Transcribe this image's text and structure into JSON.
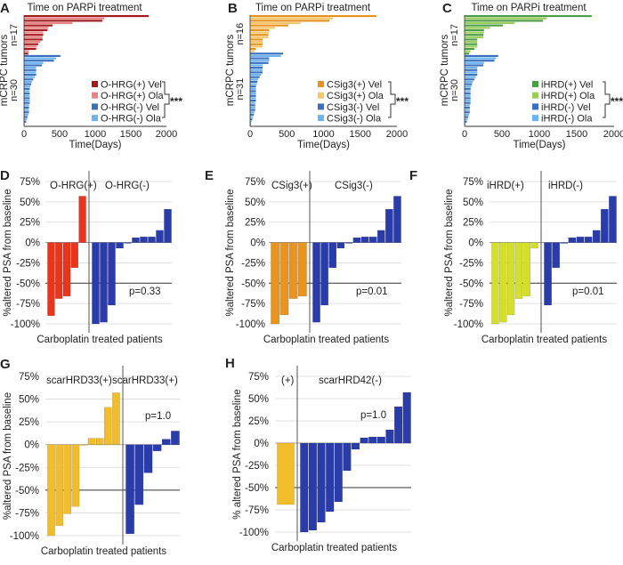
{
  "chart_data": [
    {
      "panel": "A",
      "type": "bar",
      "orientation": "horizontal",
      "title": "Time on PARPi treatment",
      "xlabel": "Time(Days)",
      "ylabel": "mCRPC tumors",
      "xlim": [
        0,
        2000
      ],
      "xticks": [
        "0",
        "500",
        "1000",
        "1500",
        "2000"
      ],
      "groups": [
        {
          "label": "n=17",
          "values": [
            1750,
            1130,
            1100,
            680,
            400,
            340,
            330,
            270,
            270,
            260,
            260,
            230,
            200,
            180,
            170,
            70,
            60
          ]
        },
        {
          "label": "n=30",
          "values": [
            510,
            450,
            420,
            270,
            250,
            170,
            170,
            170,
            170,
            150,
            130,
            110,
            100,
            90,
            80,
            80,
            80,
            80,
            80,
            80,
            80,
            70,
            70,
            70,
            70,
            60,
            50,
            40,
            30,
            10
          ]
        }
      ],
      "legend": [
        {
          "name": "O-HRG(+) Vel",
          "color": "#a3191c"
        },
        {
          "name": "O-HRG(+) Ola",
          "color": "#e98383"
        },
        {
          "name": "O-HRG(-) Vel",
          "color": "#3b6fc0"
        },
        {
          "name": "O-HRG(-) Ola",
          "color": "#6cb4ef"
        }
      ],
      "significance": "***"
    },
    {
      "panel": "B",
      "type": "bar",
      "orientation": "horizontal",
      "title": "Time on PARPi treatment",
      "xlabel": "Time(Days)",
      "ylabel": "mCRPC tumors",
      "xlim": [
        0,
        2000
      ],
      "xticks": [
        "0",
        "500",
        "1000",
        "1500",
        "2000"
      ],
      "groups": [
        {
          "label": "n=16",
          "values": [
            1720,
            1130,
            1080,
            690,
            520,
            340,
            260,
            260,
            250,
            250,
            170,
            170,
            170,
            170,
            80,
            60
          ]
        },
        {
          "label": "n=31",
          "values": [
            450,
            420,
            260,
            260,
            250,
            170,
            170,
            170,
            170,
            150,
            130,
            110,
            100,
            90,
            80,
            80,
            80,
            80,
            80,
            80,
            80,
            70,
            70,
            70,
            70,
            60,
            50,
            40,
            30,
            20,
            10
          ]
        }
      ],
      "legend": [
        {
          "name": "CSig3(+) Vel",
          "color": "#e8911e"
        },
        {
          "name": "CSig3(+) Ola",
          "color": "#f2c86c"
        },
        {
          "name": "CSig3(-) Vel",
          "color": "#3b6fc0"
        },
        {
          "name": "CSig3(-) Ola",
          "color": "#6cb4ef"
        }
      ],
      "significance": "***"
    },
    {
      "panel": "C",
      "type": "bar",
      "orientation": "horizontal",
      "title": "Time on PARPi treatment",
      "xlabel": "Time(Days)",
      "ylabel": "mCRPC tumors",
      "xlim": [
        0,
        2000
      ],
      "xticks": [
        "0",
        "500",
        "1000",
        "1500",
        "2000"
      ],
      "groups": [
        {
          "label": "n=17",
          "values": [
            1700,
            1100,
            1050,
            670,
            510,
            340,
            260,
            260,
            250,
            250,
            170,
            170,
            170,
            170,
            130,
            80,
            60
          ]
        },
        {
          "label": "n=30",
          "values": [
            450,
            420,
            400,
            260,
            250,
            170,
            170,
            170,
            170,
            150,
            130,
            110,
            100,
            90,
            80,
            80,
            80,
            80,
            80,
            80,
            80,
            70,
            70,
            70,
            70,
            60,
            50,
            40,
            30,
            10
          ]
        }
      ],
      "legend": [
        {
          "name": "iHRD(+) Vel",
          "color": "#4a9e47"
        },
        {
          "name": "iHRD(+) Ola",
          "color": "#9ccc5a"
        },
        {
          "name": "iHRD(-) Vel",
          "color": "#3b6fc0"
        },
        {
          "name": "iHRD(-) Ola",
          "color": "#6cb4ef"
        }
      ],
      "significance": "***"
    },
    {
      "panel": "D",
      "type": "bar",
      "xlabel": "Carboplatin treated patients",
      "ylabel": "%altered PSA from baseline",
      "ylim": [
        -100,
        75
      ],
      "yticks": [
        "75%",
        "50%",
        "25%",
        "0%",
        "-25%",
        "-50%",
        "-75%",
        "-100%"
      ],
      "groups": [
        {
          "label": "O-HRG(+)",
          "color": "#e8351c",
          "values": [
            -90,
            -69,
            -66,
            -31,
            57
          ]
        },
        {
          "label": "O-HRG(-)",
          "color": "#2a3caa",
          "values": [
            -100,
            -98,
            -77,
            -7,
            -1,
            6,
            7,
            7,
            15,
            41
          ]
        }
      ],
      "p_value": "p=0.33"
    },
    {
      "panel": "E",
      "type": "bar",
      "xlabel": "Carboplatin treated patients",
      "ylabel": "%altered PSA from baseline",
      "ylim": [
        -100,
        75
      ],
      "yticks": [
        "75%",
        "50%",
        "25%",
        "0%",
        "-25%",
        "-50%",
        "-75%",
        "-100%"
      ],
      "groups": [
        {
          "label": "CSig3(+)",
          "color": "#e8941f",
          "values": [
            -100,
            -89,
            -69,
            -66
          ]
        },
        {
          "label": "CSig3(-)",
          "color": "#2a3caa",
          "values": [
            -98,
            -77,
            -31,
            -7,
            -1,
            6,
            7,
            7,
            15,
            41,
            57
          ]
        }
      ],
      "p_value": "p=0.01"
    },
    {
      "panel": "F",
      "type": "bar",
      "xlabel": "Carboplatin treated patients",
      "ylabel": "%altered PSA from baseline",
      "ylim": [
        -100,
        75
      ],
      "yticks": [
        "75%",
        "50%",
        "25%",
        "0%",
        "-25%",
        "-50%",
        "-75%",
        "-100%"
      ],
      "groups": [
        {
          "label": "iHRD(+)",
          "color": "#d4df2c",
          "values": [
            -100,
            -98,
            -89,
            -69,
            -66,
            -7
          ]
        },
        {
          "label": "iHRD(-)",
          "color": "#2a3caa",
          "values": [
            -77,
            -31,
            -1,
            6,
            7,
            7,
            15,
            41,
            57
          ]
        }
      ],
      "p_value": "p=0.01"
    },
    {
      "panel": "G",
      "type": "bar",
      "xlabel": "Carboplatin treated patients",
      "ylabel": "%altered PSA from baseline",
      "ylim": [
        -100,
        75
      ],
      "yticks": [
        "75%",
        "50%",
        "25%",
        "0%",
        "-25%",
        "-50%",
        "-75%",
        "-100%"
      ],
      "groups": [
        {
          "label": "scarHRD33(+)",
          "color": "#f2bd2c",
          "values": [
            -100,
            -89,
            -76,
            -68,
            0,
            7,
            7,
            41,
            57
          ]
        },
        {
          "label": "scarHRD33(+)",
          "color": "#2a3caa",
          "values": [
            -98,
            -66,
            -31,
            -7,
            6,
            15
          ]
        }
      ],
      "p_value": "p=1.0"
    },
    {
      "panel": "H",
      "type": "bar",
      "xlabel": "Carboplatin treated patients",
      "ylabel": "% altered PSA from baseline",
      "ylim": [
        -100,
        75
      ],
      "yticks": [
        "75%",
        "50%",
        "25%",
        "0%",
        "-25%",
        "-50%",
        "-75%",
        "-100%"
      ],
      "groups": [
        {
          "label": "(+)",
          "color": "#f2bd2c",
          "values": [
            -69
          ]
        },
        {
          "label": "scarHRD42(-)",
          "color": "#2a3caa",
          "values": [
            -100,
            -98,
            -89,
            -77,
            -66,
            -31,
            -7,
            6,
            7,
            7,
            15,
            41,
            57
          ]
        }
      ],
      "p_value": "p=1.0"
    }
  ]
}
